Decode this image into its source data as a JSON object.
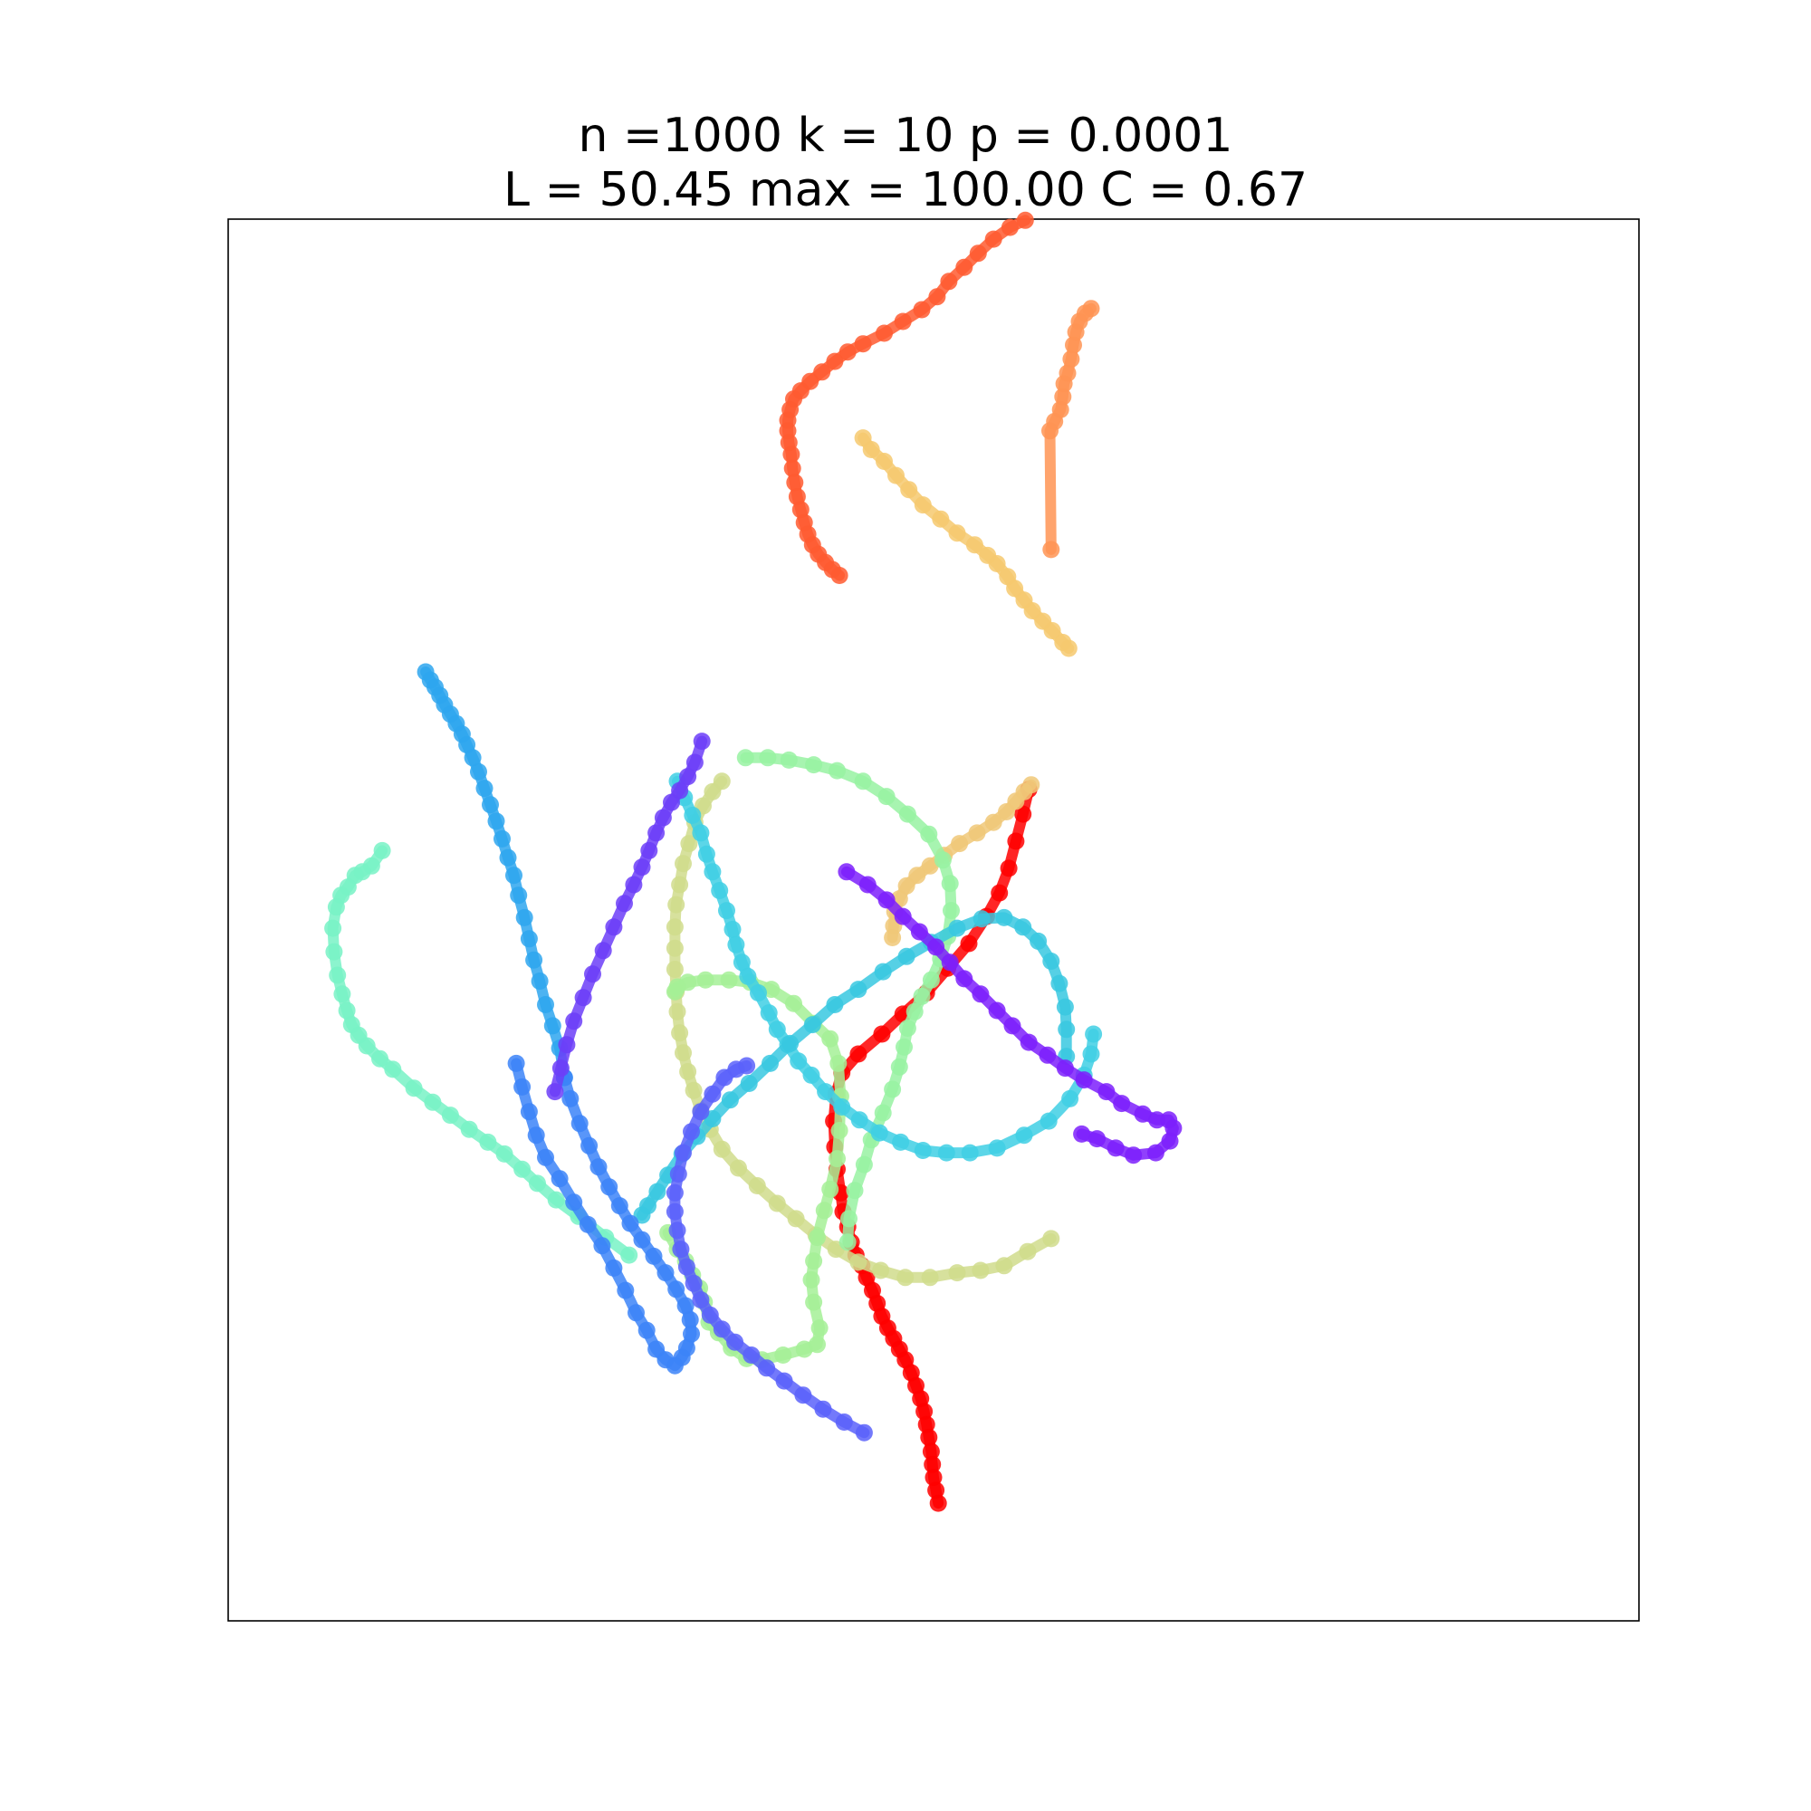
{
  "chart_data": {
    "type": "line",
    "title_lines": [
      "n =1000 k = 10 p = 0.0001",
      "L = 50.45 max = 100.00 C = 0.67"
    ],
    "xlabel": "",
    "ylabel": "",
    "grid": false,
    "axes_ticks": false,
    "xlim": [
      0,
      1200
    ],
    "ylim": [
      0,
      1192
    ],
    "colormap": "rainbow",
    "node_color_order": [
      "#8000ff",
      "#6a48ff",
      "#4e76fc",
      "#2b9cf4",
      "#3cc6e8",
      "#78f2c8",
      "#a0f4a8",
      "#d4e088",
      "#f4c070",
      "#ff8c50",
      "#ff4828",
      "#ff0000"
    ],
    "series": [
      {
        "color": "#ff0000",
        "x": [
          681,
          676,
          670,
          664,
          656,
          645,
          630,
          612,
          594,
          574,
          556,
          536,
          522,
          517,
          515,
          516,
          518,
          521,
          523,
          527,
          530,
          534,
          539,
          543,
          548,
          552,
          556,
          561,
          566,
          571,
          576,
          581,
          585,
          589,
          592,
          594,
          596,
          598,
          599,
          600,
          602,
          604
        ],
        "y": [
          707,
          686,
          663,
          640,
          619,
          599,
          576,
          555,
          534,
          516,
          499,
          482,
          466,
          448,
          425,
          403,
          384,
          364,
          348,
          335,
          322,
          311,
          302,
          292,
          281,
          270,
          259,
          249,
          240,
          231,
          222,
          211,
          200,
          189,
          178,
          167,
          156,
          144,
          133,
          122,
          111,
          100
        ]
      },
      {
        "color": "#ff5a30",
        "x": [
          678,
          665,
          651,
          638,
          626,
          613,
          603,
          590,
          574,
          558,
          540,
          527,
          516,
          505,
          495,
          487,
          481,
          478,
          476,
          476,
          477,
          479,
          480,
          482,
          484,
          487,
          490,
          493,
          497,
          502,
          508,
          514,
          520
        ],
        "y": [
          1191,
          1185,
          1175,
          1163,
          1151,
          1139,
          1126,
          1115,
          1105,
          1095,
          1086,
          1079,
          1071,
          1062,
          1054,
          1046,
          1039,
          1030,
          1021,
          1012,
          1002,
          992,
          980,
          968,
          956,
          945,
          934,
          924,
          915,
          907,
          900,
          894,
          889
        ]
      },
      {
        "color": "#ff9454",
        "x": [
          700,
          699,
          703,
          708,
          710,
          711,
          714,
          717,
          719,
          721,
          724,
          729,
          734
        ],
        "y": [
          911,
          1012,
          1020,
          1030,
          1041,
          1052,
          1061,
          1073,
          1085,
          1096,
          1105,
          1112,
          1116
        ]
      },
      {
        "color": "#f6c96e",
        "x": [
          540,
          547,
          558,
          568,
          579,
          591,
          606,
          620,
          635,
          646,
          654,
          663,
          669,
          677,
          684,
          693,
          701,
          710,
          715
        ],
        "y": [
          1006,
          996,
          986,
          974,
          962,
          949,
          937,
          925,
          915,
          906,
          899,
          888,
          878,
          868,
          859,
          850,
          842,
          832,
          827
        ]
      },
      {
        "color": "#f0c878",
        "x": [
          683,
          677,
          670,
          662,
          651,
          637,
          622,
          609,
          597,
          586,
          577,
          571,
          567,
          566,
          565
        ],
        "y": [
          711,
          705,
          697,
          688,
          679,
          670,
          661,
          651,
          642,
          634,
          625,
          614,
          603,
          591,
          581
        ]
      },
      {
        "color": "#d0dc8c",
        "x": [
          420,
          412,
          404,
          397,
          392,
          387,
          384,
          381,
          380,
          380,
          380,
          381,
          382,
          384,
          387,
          391,
          396,
          402,
          410,
          420,
          434,
          450,
          467,
          483,
          500,
          517,
          536,
          555,
          576,
          597,
          620,
          640,
          660,
          680,
          700
        ],
        "y": [
          714,
          705,
          693,
          679,
          661,
          644,
          626,
          609,
          590,
          572,
          554,
          535,
          518,
          500,
          483,
          467,
          451,
          434,
          418,
          401,
          385,
          370,
          355,
          342,
          328,
          316,
          305,
          298,
          292,
          292,
          296,
          298,
          302,
          314,
          325
        ]
      },
      {
        "color": "#98f2a2",
        "x": [
          440,
          459,
          477,
          498,
          518,
          540,
          560,
          578,
          596,
          608,
          614,
          615,
          612,
          606,
          598,
          590,
          584,
          578,
          575,
          571,
          565,
          557,
          547,
          541,
          533,
          528,
          527
        ],
        "y": [
          734,
          734,
          732,
          728,
          723,
          714,
          701,
          686,
          669,
          647,
          627,
          604,
          582,
          563,
          545,
          531,
          518,
          504,
          488,
          471,
          452,
          432,
          409,
          388,
          366,
          342,
          322
        ]
      },
      {
        "color": "#a4f096",
        "x": [
          374,
          382,
          389,
          395,
          401,
          405,
          409,
          417,
          428,
          441,
          454,
          472,
          490,
          501,
          503,
          498,
          496,
          498,
          501,
          507,
          512,
          518,
          520,
          521,
          519,
          512,
          498,
          481,
          462,
          444,
          426,
          406,
          391,
          382,
          380
        ],
        "y": [
          330,
          316,
          306,
          294,
          283,
          271,
          254,
          245,
          232,
          223,
          222,
          226,
          231,
          235,
          249,
          271,
          290,
          306,
          326,
          349,
          367,
          393,
          417,
          446,
          474,
          495,
          508,
          525,
          537,
          543,
          545,
          545,
          543,
          539,
          535
        ]
      },
      {
        "color": "#78f2c6",
        "x": [
          131,
          122,
          114,
          108,
          102,
          96,
          92,
          89,
          90,
          93,
          97,
          101,
          105,
          111,
          118,
          129,
          140,
          158,
          174,
          189,
          205,
          221,
          235,
          250,
          263,
          279,
          298,
          321,
          341
        ],
        "y": [
          655,
          642,
          637,
          634,
          624,
          617,
          607,
          589,
          569,
          549,
          533,
          519,
          507,
          498,
          489,
          478,
          469,
          453,
          441,
          430,
          418,
          407,
          397,
          384,
          372,
          358,
          344,
          326,
          311
        ]
      },
      {
        "color": "#3fcfe4",
        "x": [
          382,
          388,
          395,
          402,
          407,
          412,
          418,
          424,
          429,
          432,
          437,
          442,
          451,
          460,
          467,
          476,
          485,
          496,
          508,
          522,
          537,
          554,
          572,
          591,
          611,
          631,
          654,
          677,
          698,
          716,
          728,
          734,
          736
        ],
        "y": [
          714,
          700,
          685,
          670,
          652,
          637,
          621,
          604,
          588,
          575,
          560,
          548,
          534,
          517,
          503,
          490,
          476,
          464,
          450,
          437,
          426,
          415,
          407,
          400,
          398,
          398,
          402,
          413,
          425,
          444,
          464,
          482,
          499
        ]
      },
      {
        "color": "#38c8e0",
        "x": [
          352,
          357,
          365,
          374,
          386,
          399,
          412,
          427,
          443,
          461,
          478,
          497,
          516,
          536,
          557,
          577,
          598,
          620,
          641,
          660,
          676,
          689,
          700,
          707,
          712,
          713,
          713
        ],
        "y": [
          345,
          353,
          365,
          379,
          397,
          412,
          427,
          443,
          457,
          474,
          491,
          507,
          524,
          537,
          552,
          565,
          577,
          589,
          597,
          598,
          590,
          578,
          561,
          542,
          522,
          503,
          480
        ]
      },
      {
        "color": "#2ea6ee",
        "x": [
          168,
          172,
          176,
          180,
          184,
          189,
          194,
          199,
          203,
          208,
          213,
          218,
          223,
          228,
          233,
          238,
          243,
          247,
          252,
          256,
          260,
          265,
          270,
          276,
          282,
          286
        ],
        "y": [
          807,
          800,
          794,
          787,
          779,
          771,
          763,
          754,
          745,
          734,
          722,
          708,
          694,
          680,
          665,
          649,
          634,
          617,
          598,
          580,
          562,
          544,
          524,
          506,
          487,
          462
        ]
      },
      {
        "color": "#3c84f8",
        "x": [
          286,
          291,
          299,
          307,
          315,
          324,
          333,
          342,
          352,
          362,
          372,
          381,
          389,
          393,
          394,
          390,
          386,
          380,
          372,
          364,
          356,
          347,
          338,
          328,
          318,
          306,
          294,
          282,
          270,
          262,
          256,
          250,
          245
        ],
        "y": [
          462,
          444,
          423,
          404,
          386,
          369,
          353,
          338,
          324,
          310,
          296,
          282,
          268,
          256,
          244,
          232,
          224,
          217,
          222,
          231,
          247,
          262,
          281,
          300,
          319,
          337,
          356,
          376,
          394,
          413,
          433,
          454,
          474
        ]
      },
      {
        "color": "#5a62fa",
        "x": [
          441,
          432,
          422,
          412,
          402,
          394,
          387,
          383,
          380,
          380,
          382,
          385,
          390,
          396,
          402,
          410,
          420,
          431,
          445,
          458,
          473,
          489,
          506,
          524,
          541
        ],
        "y": [
          472,
          469,
          462,
          448,
          433,
          416,
          398,
          380,
          364,
          348,
          332,
          316,
          301,
          287,
          273,
          260,
          248,
          237,
          226,
          215,
          204,
          192,
          180,
          169,
          160
        ]
      },
      {
        "color": "#6c3ef8",
        "x": [
          278,
          283,
          288,
          294,
          302,
          310,
          319,
          328,
          337,
          345,
          352,
          358,
          364,
          370,
          377,
          384,
          391,
          397,
          403
        ],
        "y": [
          450,
          470,
          490,
          510,
          530,
          550,
          570,
          590,
          610,
          626,
          641,
          655,
          670,
          683,
          696,
          706,
          718,
          730,
          748
        ]
      },
      {
        "color": "#7c20fc",
        "x": [
          526,
          544,
          560,
          574,
          588,
          602,
          614,
          626,
          640,
          654,
          667,
          681,
          697,
          712,
          728,
          747,
          760,
          778,
          790,
          800,
          804,
          801,
          789,
          770,
          755,
          739,
          726
        ],
        "y": [
          637,
          626,
          613,
          599,
          586,
          573,
          560,
          546,
          533,
          519,
          506,
          492,
          481,
          470,
          460,
          450,
          440,
          431,
          426,
          426,
          419,
          408,
          398,
          396,
          402,
          410,
          414
        ]
      }
    ]
  }
}
